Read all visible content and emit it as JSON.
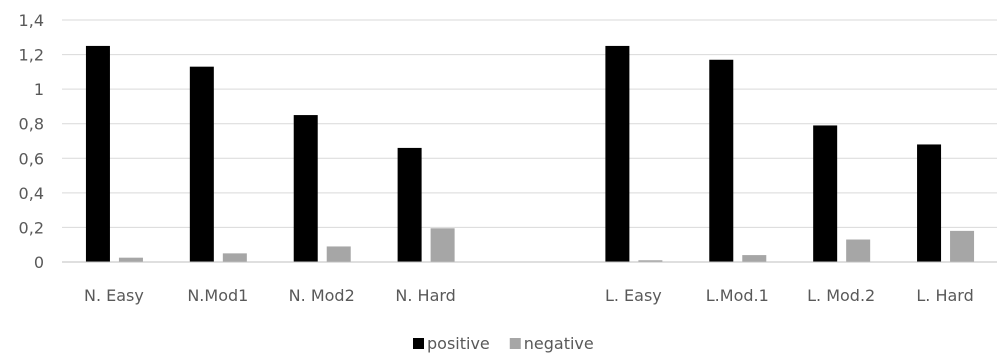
{
  "chart_data": {
    "type": "bar",
    "title": "",
    "xlabel": "",
    "ylabel": "",
    "ylim": [
      0,
      1.4
    ],
    "yticks": [
      "0",
      "0,2",
      "0,4",
      "0,6",
      "0,8",
      "1",
      "1,2",
      "1,4"
    ],
    "grid": true,
    "legend_position": "bottom",
    "categories": [
      "N. Easy",
      "N.Mod1",
      "N. Mod2",
      "N. Hard",
      "",
      "L. Easy",
      "L.Mod.1",
      "L. Mod.2",
      "L. Hard"
    ],
    "series": [
      {
        "name": "positive",
        "color": "#000000",
        "values": [
          1.25,
          1.13,
          0.85,
          0.66,
          null,
          1.25,
          1.17,
          0.79,
          0.68
        ]
      },
      {
        "name": "negative",
        "color": "#a6a6a6",
        "values": [
          0.025,
          0.05,
          0.09,
          0.195,
          null,
          0.01,
          0.04,
          0.13,
          0.18
        ]
      }
    ]
  }
}
